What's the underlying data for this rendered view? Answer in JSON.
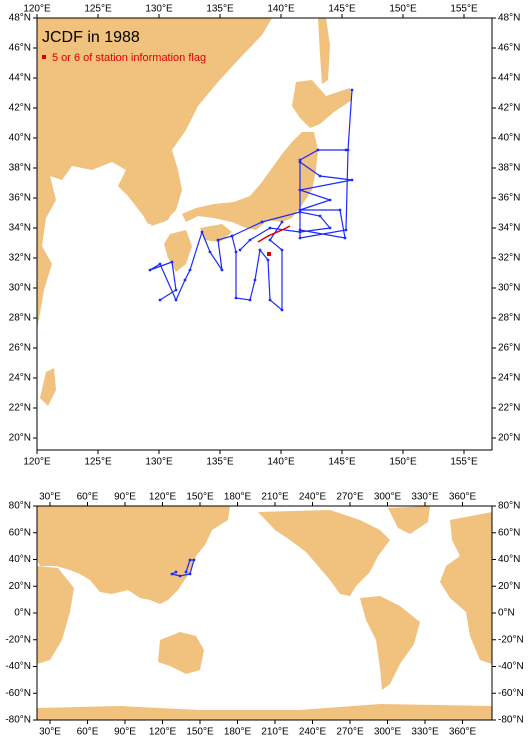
{
  "title": "JCDF in 1988",
  "legend": "5 or 6 of station information flag",
  "top_map": {
    "lon_labels": [
      "120°E",
      "125°E",
      "130°E",
      "135°E",
      "140°E",
      "145°E",
      "150°E",
      "155°E"
    ],
    "lat_labels": [
      "48°N",
      "46°N",
      "44°N",
      "42°N",
      "40°N",
      "38°N",
      "36°N",
      "34°N",
      "32°N",
      "30°N",
      "28°N",
      "26°N",
      "24°N",
      "22°N",
      "20°N"
    ]
  },
  "bottom_map": {
    "lon_labels": [
      "30°E",
      "60°E",
      "90°E",
      "120°E",
      "150°E",
      "180°E",
      "210°E",
      "240°E",
      "270°E",
      "300°E",
      "330°E",
      "360°E"
    ],
    "lat_labels": [
      "80°N",
      "60°N",
      "40°N",
      "20°N",
      "0°N",
      "-20°N",
      "-40°N",
      "-60°N",
      "-80°N"
    ]
  }
}
